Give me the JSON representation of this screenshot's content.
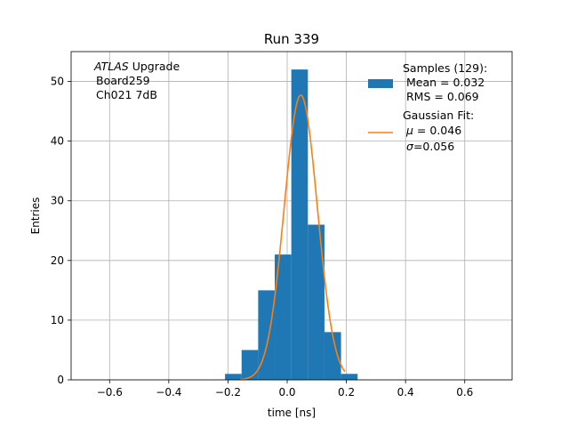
{
  "chart_data": {
    "type": "bar",
    "title": "Run 339",
    "xlabel": "time [ns]",
    "ylabel": "Entries",
    "xlim": [
      -0.73,
      0.76
    ],
    "ylim": [
      0,
      55
    ],
    "grid": true,
    "legend_placement": "top-right",
    "annotation": {
      "italic": "ATLAS",
      "rest": " Upgrade",
      "lines": [
        "Board259",
        "Ch021 7dB"
      ]
    },
    "xticks": [
      -0.6,
      -0.4,
      -0.2,
      0.0,
      0.2,
      0.4,
      0.6
    ],
    "xtick_labels": [
      "−0.6",
      "−0.4",
      "−0.2",
      "0.0",
      "0.2",
      "0.4",
      "0.6"
    ],
    "yticks": [
      0,
      10,
      20,
      30,
      40,
      50
    ],
    "ytick_labels": [
      "0",
      "10",
      "20",
      "30",
      "40",
      "50"
    ],
    "histogram": {
      "color": "#1f77b4",
      "bin_edges": [
        -0.21,
        -0.154,
        -0.098,
        -0.042,
        0.014,
        0.07,
        0.126,
        0.182,
        0.238
      ],
      "bins": [
        {
          "x0": -0.21,
          "x1": -0.154,
          "count": 1
        },
        {
          "x0": -0.154,
          "x1": -0.098,
          "count": 5
        },
        {
          "x0": -0.098,
          "x1": -0.042,
          "count": 15
        },
        {
          "x0": -0.042,
          "x1": 0.014,
          "count": 21
        },
        {
          "x0": 0.014,
          "x1": 0.07,
          "count": 52
        },
        {
          "x0": 0.07,
          "x1": 0.126,
          "count": 26
        },
        {
          "x0": 0.126,
          "x1": 0.182,
          "count": 8
        },
        {
          "x0": 0.182,
          "x1": 0.238,
          "count": 1
        }
      ]
    },
    "gaussian_fit": {
      "color": "#ff7f0e",
      "mu": 0.046,
      "sigma": 0.056,
      "amplitude": 47.7,
      "x_range": [
        -0.16,
        0.195
      ]
    },
    "legend": {
      "samples_title": "Samples (129):",
      "samples_mean": "Mean = 0.032",
      "samples_rms": "RMS = 0.069",
      "fit_title": "Gaussian Fit:",
      "fit_mu_symbol": "μ",
      "fit_mu_value": " = 0.046",
      "fit_sigma_symbol": "σ",
      "fit_sigma_value": "=0.056"
    }
  }
}
